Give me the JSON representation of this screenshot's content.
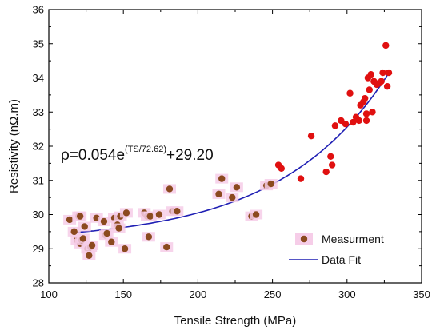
{
  "chart_data": {
    "type": "scatter",
    "xlabel": "Tensile Strength (MPa)",
    "ylabel": "Resistivity (nΩ.m)",
    "xlim": [
      100,
      350
    ],
    "ylim": [
      28,
      36
    ],
    "x_ticks": [
      100,
      150,
      200,
      250,
      300,
      350
    ],
    "y_ticks": [
      28,
      29,
      30,
      31,
      32,
      33,
      34,
      35,
      36
    ],
    "grid": false,
    "legend_position": "bottom-right",
    "annotation": {
      "base": "ρ=0.054e",
      "superscript": "(TS/72.62)",
      "tail": "+29.20"
    },
    "fit": {
      "A": 0.054,
      "t": 72.62,
      "y0": 29.2,
      "x_range": [
        116,
        328
      ]
    },
    "series": [
      {
        "name": "Measurment",
        "kind": "scatter",
        "colors": {
          "low": "#8b4a1f",
          "high": "#e01010"
        },
        "x": [
          114,
          117,
          119,
          120,
          121,
          121,
          122,
          123,
          124,
          126,
          127,
          128,
          129,
          132,
          137,
          138,
          139,
          142,
          144,
          146,
          147,
          148,
          151,
          152,
          164,
          166,
          167,
          168,
          174,
          179,
          181,
          183,
          186,
          214,
          216,
          223,
          226,
          236,
          239,
          246,
          249,
          254,
          256,
          269,
          276,
          286,
          289,
          290,
          292,
          296,
          299,
          302,
          304,
          306,
          308,
          309,
          311,
          312,
          313,
          313,
          314,
          315,
          316,
          317,
          318,
          319,
          320,
          322,
          323,
          324,
          326,
          327,
          328
        ],
        "y": [
          29.85,
          29.5,
          29.25,
          29.95,
          29.15,
          29.95,
          29.25,
          29.3,
          29.65,
          29.0,
          28.8,
          29.05,
          29.1,
          29.9,
          29.8,
          29.4,
          29.45,
          29.2,
          29.9,
          29.7,
          29.6,
          29.95,
          29.0,
          30.05,
          30.05,
          29.95,
          29.35,
          29.95,
          30.0,
          29.05,
          30.75,
          30.1,
          30.1,
          30.6,
          31.05,
          30.5,
          30.8,
          29.95,
          30.0,
          30.85,
          30.9,
          31.45,
          31.35,
          31.05,
          32.3,
          31.25,
          31.7,
          31.45,
          32.6,
          32.75,
          32.65,
          33.55,
          32.7,
          32.85,
          32.75,
          33.2,
          33.3,
          33.4,
          32.95,
          32.75,
          34.0,
          33.65,
          34.1,
          33.0,
          33.9,
          33.85,
          33.8,
          33.85,
          33.9,
          34.15,
          34.95,
          33.75,
          34.15
        ]
      },
      {
        "name": "Data Fit",
        "kind": "line",
        "color": "#1f1fb4"
      }
    ]
  }
}
